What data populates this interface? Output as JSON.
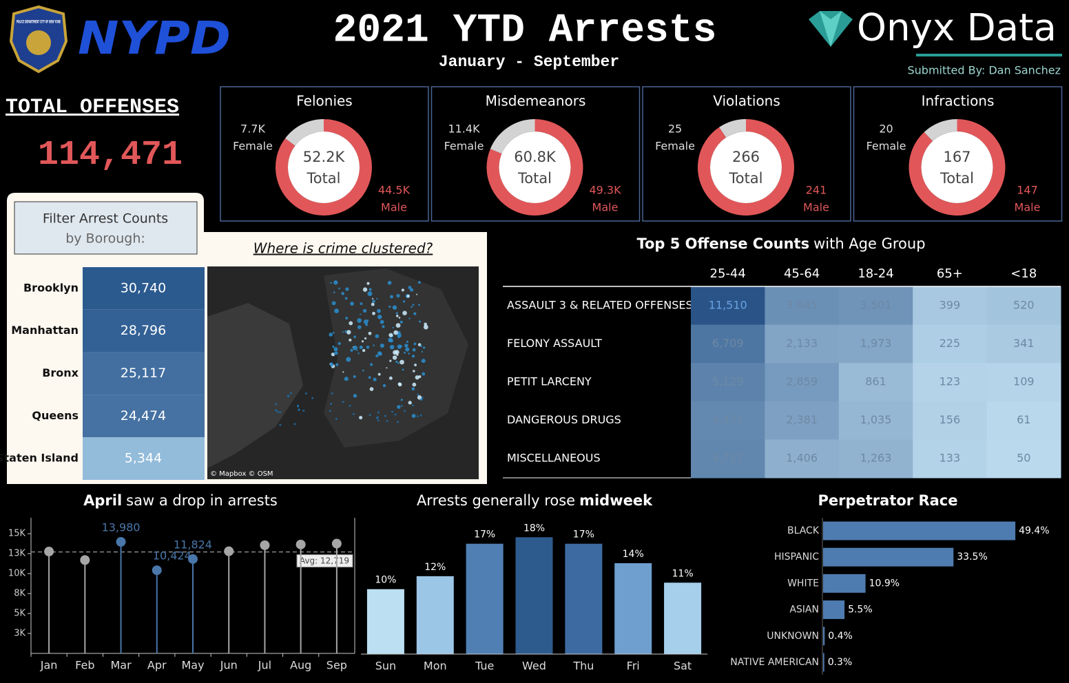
{
  "header": {
    "badge_text": "POLICE DEPARTMENT CITY OF NEW YORK",
    "nypd": "NYPD",
    "title": "2021 YTD Arrests",
    "subtitle": "January - September",
    "brand": "Onyx Data",
    "submitted_by": "Submitted By: Dan Sanchez"
  },
  "total_offenses": {
    "label": "TOTAL OFFENSES",
    "value": "114,471"
  },
  "map": {
    "title": "Where is crime clustered?",
    "attribution": "© Mapbox © OSM"
  },
  "chart_data": [
    {
      "type": "donut",
      "title": "Felonies",
      "categories": [
        "Female",
        "Male"
      ],
      "values": [
        7700,
        44500
      ],
      "value_labels": [
        "7.7K",
        "44.5K"
      ],
      "colors": [
        "#d3d3d3",
        "#e15759"
      ],
      "total_label": "52.2K",
      "total_text": "Total"
    },
    {
      "type": "donut",
      "title": "Misdemeanors",
      "categories": [
        "Female",
        "Male"
      ],
      "values": [
        11400,
        49300
      ],
      "value_labels": [
        "11.4K",
        "49.3K"
      ],
      "colors": [
        "#d3d3d3",
        "#e15759"
      ],
      "total_label": "60.8K",
      "total_text": "Total"
    },
    {
      "type": "donut",
      "title": "Violations",
      "categories": [
        "Female",
        "Male"
      ],
      "values": [
        25,
        241
      ],
      "colors": [
        "#d3d3d3",
        "#e15759"
      ],
      "total_label": "266",
      "total_text": "Total"
    },
    {
      "type": "donut",
      "title": "Infractions",
      "categories": [
        "Female",
        "Male"
      ],
      "values": [
        20,
        147
      ],
      "colors": [
        "#d3d3d3",
        "#e15759"
      ],
      "total_label": "167",
      "total_text": "Total"
    },
    {
      "type": "highlight-list",
      "title": "Filter Arrest Counts",
      "subtitle": "by Borough:",
      "categories": [
        "Brooklyn",
        "Manhattan",
        "Bronx",
        "Queens",
        "Staten Island"
      ],
      "values": [
        30740,
        28796,
        25117,
        24474,
        5344
      ],
      "value_labels": [
        "30,740",
        "28,796",
        "25,117",
        "24,474",
        "5,344"
      ],
      "color_low": "#a9cfea",
      "color_high": "#2b5a8f"
    },
    {
      "type": "heatmap",
      "title_parts": [
        {
          "text": "Top 5 Offense Counts",
          "bold": true
        },
        {
          "text": "with Age Group",
          "bold": false
        }
      ],
      "x": [
        "25-44",
        "45-64",
        "18-24",
        "65+",
        "<18"
      ],
      "y": [
        "ASSAULT 3 & RELATED OFFENSES",
        "FELONY ASSAULT",
        "PETIT LARCENY",
        "DANGEROUS DRUGS",
        "MISCELLANEOUS"
      ],
      "values": [
        [
          11510,
          3845,
          3501,
          399,
          520
        ],
        [
          6709,
          2133,
          1973,
          225,
          341
        ],
        [
          5129,
          2859,
          861,
          123,
          109
        ],
        [
          4471,
          2381,
          1035,
          156,
          61
        ],
        [
          4717,
          1406,
          1263,
          133,
          50
        ]
      ],
      "value_labels": [
        [
          "11,510",
          "3,845",
          "3,501",
          "399",
          "520"
        ],
        [
          "6,709",
          "2,133",
          "1,973",
          "225",
          "341"
        ],
        [
          "5,129",
          "2,859",
          "861",
          "123",
          "109"
        ],
        [
          "4,471",
          "2,381",
          "1,035",
          "156",
          "61"
        ],
        [
          "4,717",
          "1,406",
          "1,263",
          "133",
          "50"
        ]
      ],
      "color_low": "#c4e2f4",
      "color_high": "#2a5488"
    },
    {
      "type": "lollipop",
      "title_parts": [
        {
          "text": "April",
          "bold": true
        },
        {
          "text": "saw a drop in arrests",
          "bold": false
        }
      ],
      "categories": [
        "Jan",
        "Feb",
        "Mar",
        "Apr",
        "May",
        "Jun",
        "Jul",
        "Aug",
        "Sep"
      ],
      "values": [
        12770,
        11700,
        13980,
        10424,
        11824,
        12800,
        13560,
        13650,
        13760
      ],
      "value_labels": [
        null,
        null,
        "13,980",
        "10,424",
        "11,824",
        null,
        null,
        null,
        null
      ],
      "colors": [
        "#a6a6a6",
        "#a6a6a6",
        "#4a77aa",
        "#4a77aa",
        "#4a77aa",
        "#a6a6a6",
        "#a6a6a6",
        "#a6a6a6",
        "#a6a6a6"
      ],
      "ylim": [
        0,
        17000
      ],
      "yticks": [
        {
          "value": 2500,
          "label": "3K"
        },
        {
          "value": 5000,
          "label": "5K"
        },
        {
          "value": 7500,
          "label": "8K"
        },
        {
          "value": 10000,
          "label": "10K"
        },
        {
          "value": 12500,
          "label": "13K"
        },
        {
          "value": 15000,
          "label": "15K"
        }
      ],
      "reference_line": {
        "value": 12719,
        "label": "Avg: 12,719"
      }
    },
    {
      "type": "bar",
      "title_parts": [
        {
          "text": "Arrests generally rose",
          "bold": false
        },
        {
          "text": "midweek",
          "bold": true
        }
      ],
      "categories": [
        "Sun",
        "Mon",
        "Tue",
        "Wed",
        "Thu",
        "Fri",
        "Sat"
      ],
      "values": [
        10,
        12,
        17,
        18,
        17,
        14,
        11
      ],
      "value_labels": [
        "10%",
        "12%",
        "17%",
        "18%",
        "17%",
        "14%",
        "11%"
      ],
      "colors": [
        "#bcdff2",
        "#9cc6e6",
        "#4f7fb3",
        "#2e5b8e",
        "#3d6aa0",
        "#6e9fcf",
        "#a5cfeb"
      ],
      "ylim": [
        0,
        21
      ]
    },
    {
      "type": "hbar",
      "title": "Perpetrator Race",
      "categories": [
        "BLACK",
        "HISPANIC",
        "WHITE",
        "ASIAN",
        "UNKNOWN",
        "NATIVE AMERICAN"
      ],
      "values": [
        49.4,
        33.5,
        10.9,
        5.5,
        0.4,
        0.3
      ],
      "value_labels": [
        "49.4%",
        "33.5%",
        "10.9%",
        "5.5%",
        "0.4%",
        "0.3%"
      ],
      "color": "#4f7cb0",
      "xlim": [
        0,
        60
      ]
    }
  ]
}
